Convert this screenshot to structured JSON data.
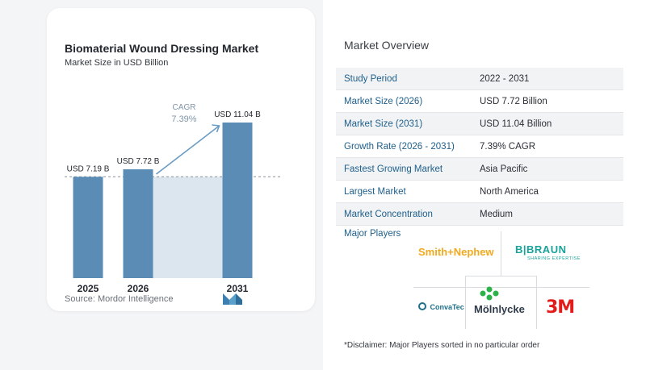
{
  "chart_data": {
    "type": "bar",
    "title": "Biomaterial Wound Dressing Market",
    "subtitle": "Market Size in USD Billion",
    "categories": [
      "2025",
      "2026",
      "2031"
    ],
    "values": [
      7.19,
      7.72,
      11.04
    ],
    "data_labels": [
      "USD 7.19 B",
      "USD 7.72 B",
      "USD 11.04 B"
    ],
    "cagr_label": "CAGR",
    "cagr_value": "7.39%",
    "ylim": [
      0,
      11.04
    ],
    "colors": {
      "bar": "#5a8cb6",
      "band": "#dbe6ef"
    }
  },
  "source": "Source:  Mordor Intelligence",
  "overview": {
    "title": "Market Overview",
    "rows": [
      {
        "label": "Study Period",
        "value": "2022 - 2031"
      },
      {
        "label": "Market Size (2026)",
        "value": "USD 7.72 Billion"
      },
      {
        "label": "Market Size (2031)",
        "value": "USD 11.04 Billion"
      },
      {
        "label": "Growth Rate (2026 - 2031)",
        "value": "7.39% CAGR"
      },
      {
        "label": "Fastest Growing Market",
        "value": "Asia Pacific"
      },
      {
        "label": "Largest Market",
        "value": "North America"
      },
      {
        "label": "Market Concentration",
        "value": "Medium"
      }
    ]
  },
  "players": {
    "title": "Major Players",
    "names": [
      "Smith+Nephew",
      "B|BRAUN",
      "SHARING EXPERTISE",
      "ConvaTec",
      "Mölnlycke",
      "3M"
    ]
  },
  "disclaimer": "*Disclaimer: Major Players sorted in no particular order"
}
